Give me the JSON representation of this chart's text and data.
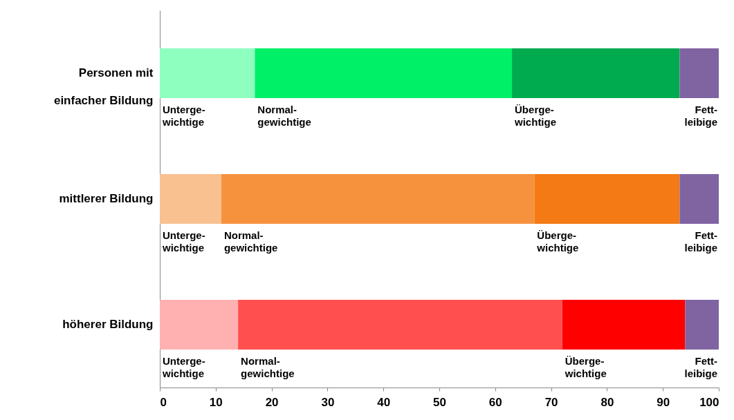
{
  "chart_data": {
    "type": "bar",
    "orientation": "horizontal",
    "stacked": true,
    "categories": [
      "Personen mit\neinfacher Bildung",
      "mittlerer Bildung",
      "höherer Bildung"
    ],
    "series": [
      {
        "name": "Unterge-\nwichtige",
        "colors": [
          "#8fffc0",
          "#f9c190",
          "#ffb1b1"
        ],
        "values": [
          17,
          11,
          14
        ]
      },
      {
        "name": "Normal-\ngewichtige",
        "colors": [
          "#00f068",
          "#f6923e",
          "#ff4f4f"
        ],
        "values": [
          46,
          56,
          58
        ]
      },
      {
        "name": "Überge-\nwichtige",
        "colors": [
          "#00ab4f",
          "#f37a15",
          "#ff0000"
        ],
        "values": [
          30,
          26,
          22
        ]
      },
      {
        "name": "Fett-\nleibige",
        "colors": [
          "#8064a2",
          "#8064a2",
          "#8064a2"
        ],
        "values": [
          7,
          7,
          6
        ]
      }
    ],
    "xlim": [
      0,
      100
    ],
    "xticks": [
      0,
      10,
      20,
      30,
      40,
      50,
      60,
      70,
      80,
      90,
      100
    ],
    "grid": false
  }
}
